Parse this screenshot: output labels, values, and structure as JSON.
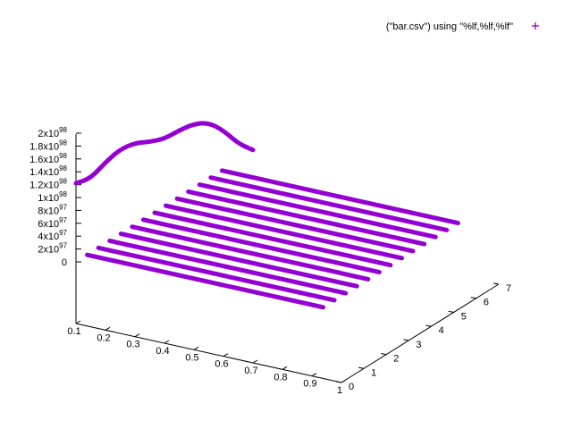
{
  "chart_data": {
    "type": "scatter",
    "projection": "3d",
    "title": "",
    "xlabel": "",
    "ylabel": "",
    "zlabel": "",
    "legend": {
      "position": "top-right",
      "entries": [
        {
          "label": "(\"bar.csv\") using \"%lf,%lf,%lf\"",
          "marker": "+",
          "color": "#9400d3"
        }
      ]
    },
    "xlim": [
      0.1,
      1
    ],
    "ylim": [
      0,
      7
    ],
    "zlim": [
      0,
      2e+98
    ],
    "x_ticks": [
      "0.1",
      "0.2",
      "0.3",
      "0.4",
      "0.5",
      "0.6",
      "0.7",
      "0.8",
      "0.9",
      "1"
    ],
    "y_ticks": [
      "0",
      "1",
      "2",
      "3",
      "4",
      "5",
      "6",
      "7"
    ],
    "z_ticks": [
      {
        "mant": "0",
        "exp": ""
      },
      {
        "mant": "2x10",
        "exp": "97"
      },
      {
        "mant": "4x10",
        "exp": "97"
      },
      {
        "mant": "6x10",
        "exp": "97"
      },
      {
        "mant": "8x10",
        "exp": "97"
      },
      {
        "mant": "1x10",
        "exp": "98"
      },
      {
        "mant": "1.2x10",
        "exp": "98"
      },
      {
        "mant": "1.4x10",
        "exp": "98"
      },
      {
        "mant": "1.6x10",
        "exp": "98"
      },
      {
        "mant": "1.8x10",
        "exp": "98"
      },
      {
        "mant": "2x10",
        "exp": "98"
      }
    ],
    "series": [
      {
        "color": "#9400d3",
        "note_y_rows": [
          0.5,
          1.0,
          1.5,
          2.0,
          2.5,
          3.0,
          3.5,
          4.0,
          4.5,
          5.0,
          5.5,
          6.0,
          6.5
        ],
        "row_x_range": [
          0.1,
          0.9
        ],
        "row_z_value": 0,
        "curve_y": 0.0,
        "curve_points": [
          [
            0.1,
            1.22e+98
          ],
          [
            0.15,
            1.35e+98
          ],
          [
            0.2,
            1.65e+98
          ],
          [
            0.25,
            1.9e+98
          ],
          [
            0.3,
            2.05e+98
          ],
          [
            0.35,
            2.12e+98
          ],
          [
            0.4,
            2.22e+98
          ],
          [
            0.45,
            2.4e+98
          ],
          [
            0.5,
            2.55e+98
          ],
          [
            0.55,
            2.62e+98
          ],
          [
            0.6,
            2.55e+98
          ],
          [
            0.65,
            2.4e+98
          ],
          [
            0.7,
            2.35e+98
          ]
        ]
      }
    ]
  }
}
